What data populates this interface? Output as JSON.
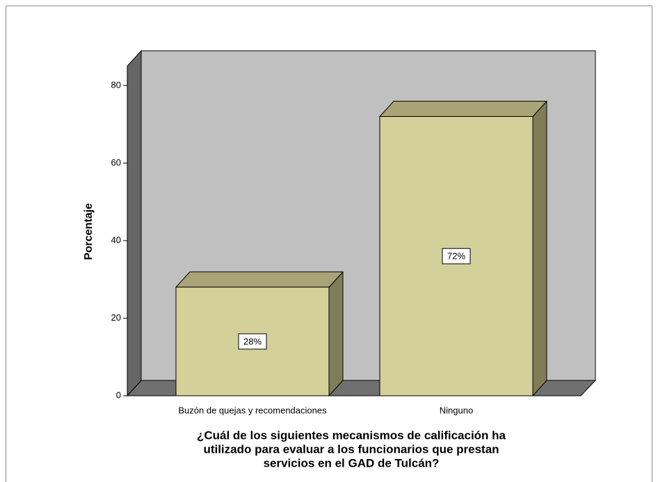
{
  "chart_data": {
    "type": "bar3d",
    "ylabel": "Porcentaje",
    "xlabel": [
      "¿Cuál de los siguientes mecanismos de calificación ha",
      "utilizado para evaluar a los funcionarios que prestan",
      "servicios en el GAD de Tulcán?"
    ],
    "categories": [
      "Buzón de quejas y recomendaciones",
      "Ninguno"
    ],
    "values": [
      28,
      72
    ],
    "value_labels": [
      "28%",
      "72%"
    ],
    "color": "#d4d09a",
    "ylim": [
      0,
      85
    ],
    "yticks": [
      0,
      20,
      40,
      60,
      80
    ]
  }
}
